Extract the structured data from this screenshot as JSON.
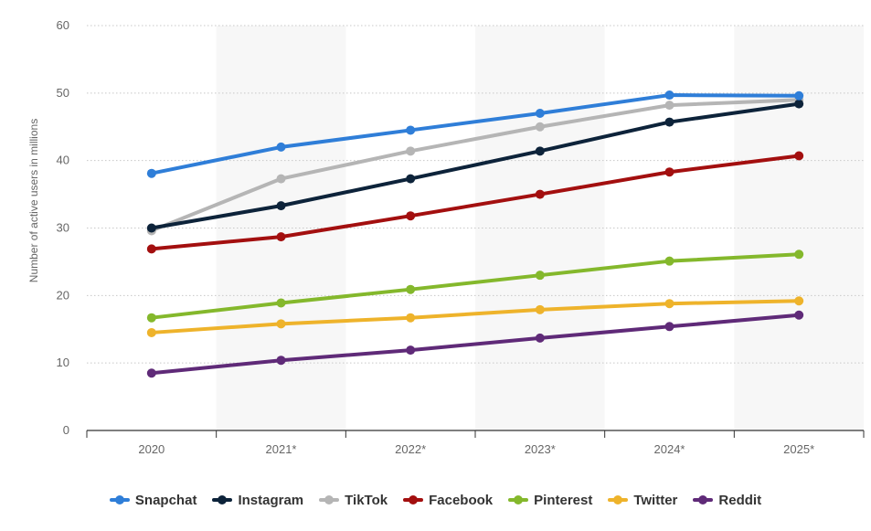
{
  "chart_data": {
    "type": "line",
    "title": "",
    "xlabel": "",
    "ylabel": "Number of active users in millions",
    "ylim": [
      0,
      60
    ],
    "yticks": [
      0,
      10,
      20,
      30,
      40,
      50,
      60
    ],
    "grid": true,
    "legend_position": "bottom",
    "categories": [
      "2020",
      "2021*",
      "2022*",
      "2023*",
      "2024*",
      "2025*"
    ],
    "series": [
      {
        "name": "Snapchat",
        "color": "#2f7ed8",
        "values": [
          38.1,
          42.0,
          44.5,
          47.0,
          49.7,
          49.6
        ]
      },
      {
        "name": "Instagram",
        "color": "#0d233a",
        "values": [
          30.0,
          33.3,
          37.3,
          41.4,
          45.7,
          48.4
        ]
      },
      {
        "name": "TikTok",
        "color": "#b5b5b5",
        "values": [
          29.6,
          37.3,
          41.4,
          45.0,
          48.2,
          49.0
        ]
      },
      {
        "name": "Facebook",
        "color": "#a30f0f",
        "values": [
          26.9,
          28.7,
          31.8,
          35.0,
          38.3,
          40.7
        ]
      },
      {
        "name": "Pinterest",
        "color": "#84b82c",
        "values": [
          16.7,
          18.9,
          20.9,
          23.0,
          25.1,
          26.1
        ]
      },
      {
        "name": "Twitter",
        "color": "#eeb32b",
        "values": [
          14.5,
          15.8,
          16.7,
          17.9,
          18.8,
          19.2
        ]
      },
      {
        "name": "Reddit",
        "color": "#5f2a78",
        "values": [
          8.5,
          10.4,
          11.9,
          13.7,
          15.4,
          17.1
        ]
      }
    ]
  }
}
